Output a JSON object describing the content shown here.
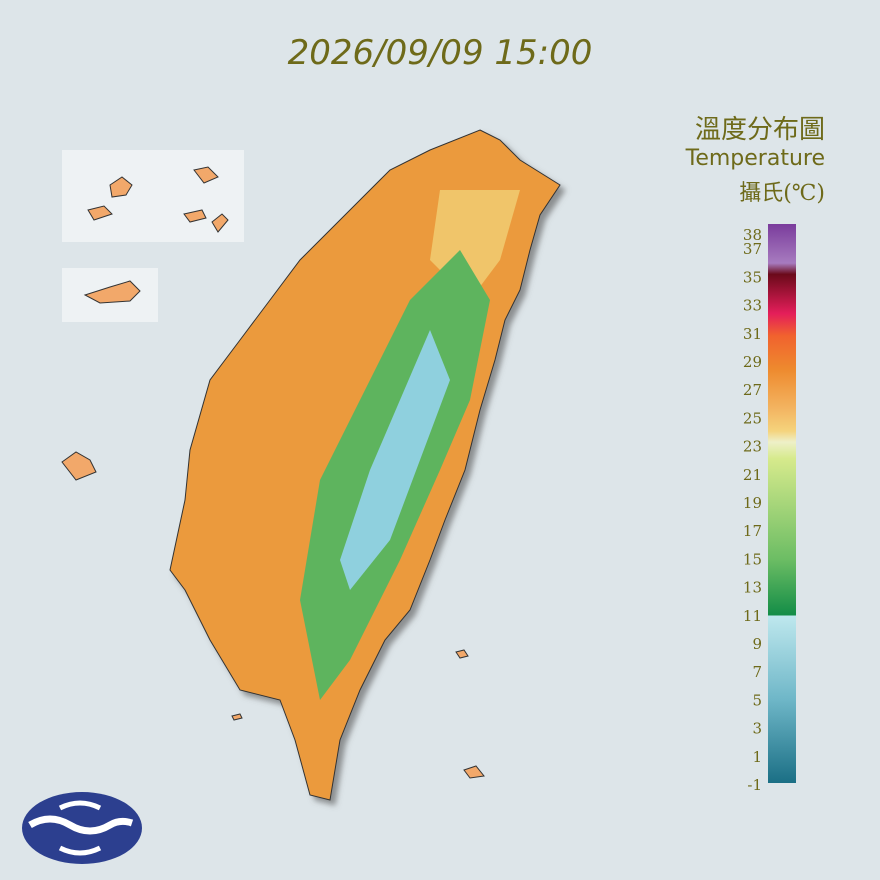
{
  "timestamp": "2026/09/09 15:00",
  "legend": {
    "title_zh": "溫度分布圖",
    "title_en": "Temperature",
    "unit": "攝氏(℃)",
    "ticks": [
      38,
      37,
      35,
      33,
      31,
      29,
      27,
      25,
      23,
      21,
      19,
      17,
      15,
      13,
      11,
      9,
      7,
      5,
      3,
      1,
      -1
    ]
  }
}
